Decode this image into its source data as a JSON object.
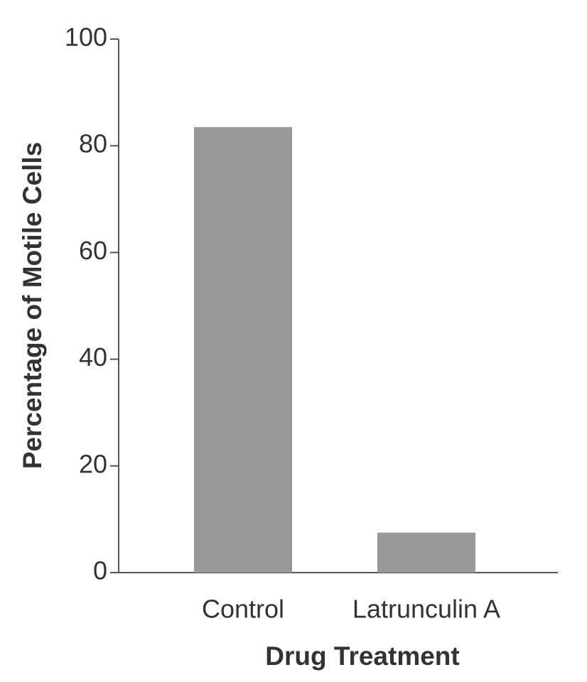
{
  "chart_data": {
    "type": "bar",
    "categories": [
      "Control",
      "Latrunculin A"
    ],
    "values": [
      83.5,
      7.5
    ],
    "color": "#999999",
    "xlabel": "Drug Treatment",
    "ylabel": "Percentage of Motile Cells",
    "ylim": [
      0,
      100
    ],
    "yticks": [
      0,
      20,
      40,
      60,
      80,
      100
    ],
    "grid": false
  }
}
